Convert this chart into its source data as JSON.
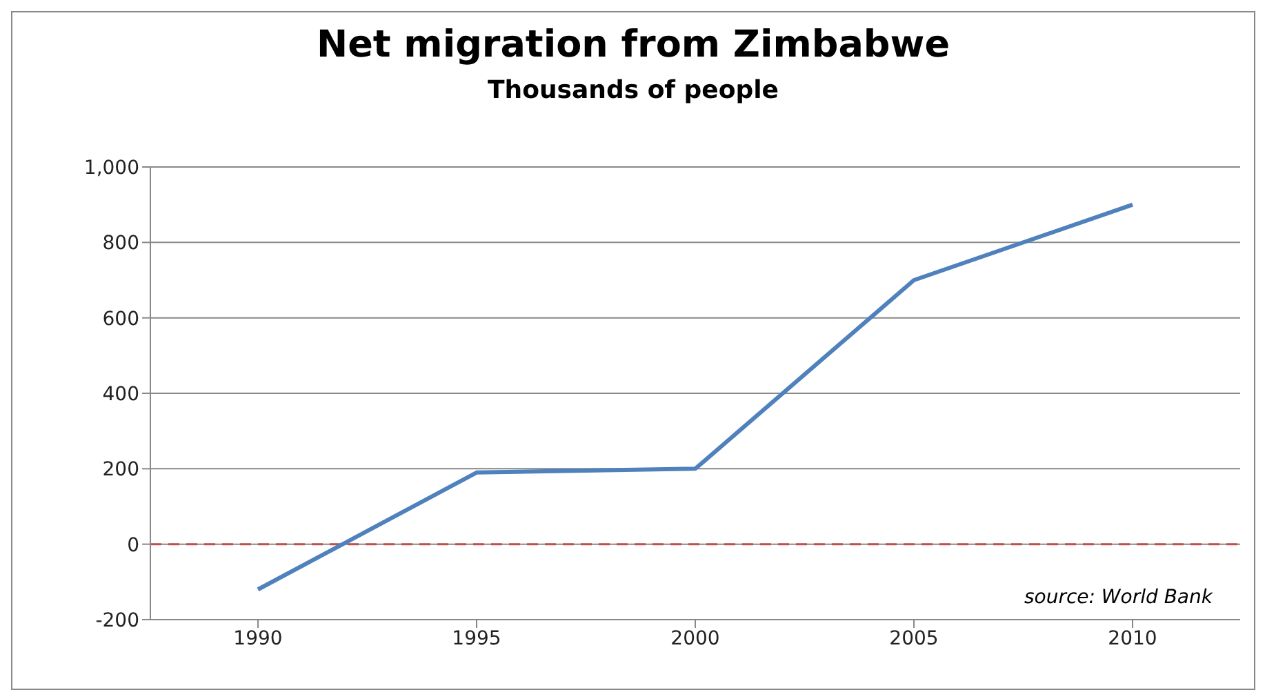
{
  "chart_data": {
    "type": "line",
    "title": "Net migration from Zimbabwe",
    "subtitle": "Thousands of people",
    "categories": [
      "1990",
      "1995",
      "2000",
      "2005",
      "2010"
    ],
    "series": [
      {
        "color": "#4f81bd",
        "values": [
          -120,
          190,
          200,
          700,
          900
        ]
      }
    ],
    "ylim": [
      -200,
      1000
    ],
    "yticks": [
      -200,
      0,
      200,
      400,
      600,
      800,
      {
        "value": 1000,
        "label": "1,000"
      }
    ],
    "grid": "y",
    "marker": "none",
    "line_style": "solid",
    "ref_lines": [
      {
        "axis": "y",
        "value": 0,
        "color": "#c0504d",
        "line_style": "dashed"
      }
    ],
    "annotations": [
      "source: World Bank"
    ]
  }
}
